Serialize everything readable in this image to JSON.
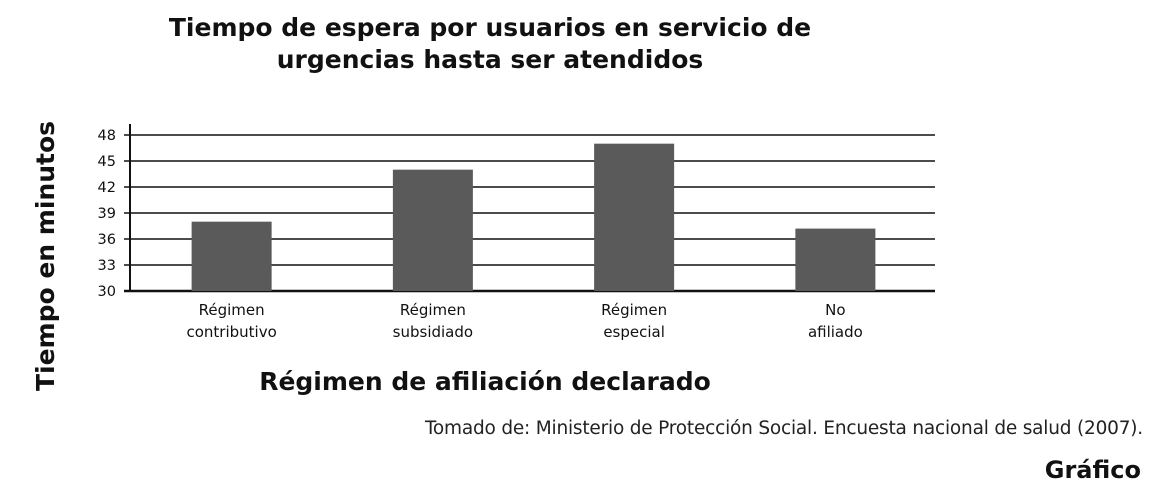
{
  "chart_data": {
    "type": "bar",
    "title_lines": [
      "Tiempo de espera por usuarios en servicio de",
      "urgencias hasta ser atendidos"
    ],
    "categories": [
      [
        "Régimen",
        "contributivo"
      ],
      [
        "Régimen",
        "subsidiado"
      ],
      [
        "Régimen",
        "especial"
      ],
      [
        "No",
        "afiliado"
      ]
    ],
    "values": [
      38,
      44,
      47,
      37.2
    ],
    "xlabel": "Régimen de afiliación declarado",
    "ylabel": "Tiempo en minutos",
    "y_ticks": [
      30,
      33,
      36,
      39,
      42,
      45,
      48
    ],
    "ylim": [
      30,
      48
    ],
    "grid": true,
    "bar_color": "#5a5a5a"
  },
  "source": "Tomado de: Ministerio de Protección Social. Encuesta nacional de salud (2007).",
  "caption": "Gráfico"
}
